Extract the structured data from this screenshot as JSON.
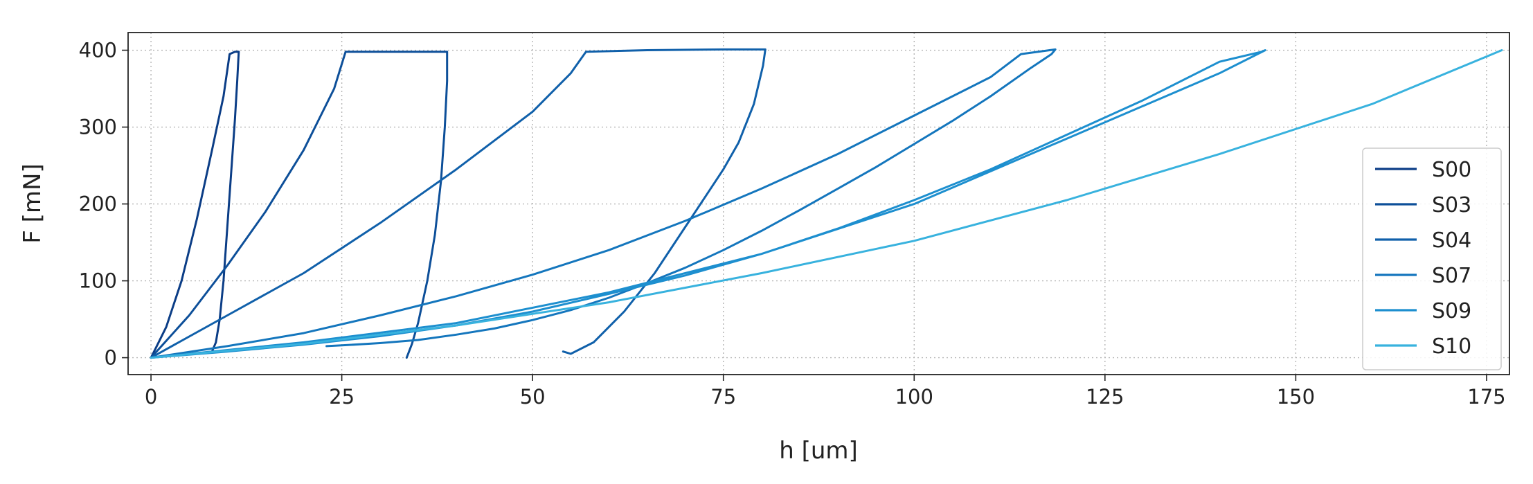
{
  "chart_data": {
    "type": "line",
    "title": "",
    "xlabel": "h [um]",
    "ylabel": "F [mN]",
    "xlim": [
      -3,
      178
    ],
    "ylim": [
      -22,
      423
    ],
    "xticks": [
      0,
      25,
      50,
      75,
      100,
      125,
      150,
      175
    ],
    "yticks": [
      0,
      100,
      200,
      300,
      400
    ],
    "grid": true,
    "legend_position": "lower-right",
    "series": [
      {
        "name": "S00",
        "color": "#0b3d86",
        "x": [
          0,
          2,
          4,
          6,
          8,
          9.5,
          10.3,
          11.0,
          11.5,
          11.3,
          11.0,
          10.5,
          10.0,
          9.5,
          9.0,
          8.5,
          8.0
        ],
        "y": [
          0,
          40,
          100,
          180,
          270,
          340,
          395,
          398,
          398,
          360,
          310,
          240,
          170,
          100,
          50,
          20,
          8
        ]
      },
      {
        "name": "S03",
        "color": "#0d4f99",
        "x": [
          0,
          5,
          10,
          15,
          20,
          24,
          25.5,
          28,
          32,
          36,
          38.8,
          38.8,
          38.5,
          38.0,
          37.2,
          36.2,
          35.0,
          34.2,
          33.5
        ],
        "y": [
          0,
          55,
          120,
          190,
          270,
          350,
          398,
          398,
          398,
          398,
          398,
          360,
          300,
          230,
          160,
          100,
          45,
          18,
          0
        ]
      },
      {
        "name": "S04",
        "color": "#1060aa",
        "x": [
          0,
          10,
          20,
          30,
          40,
          50,
          55,
          57,
          65,
          75,
          80.5,
          80.2,
          79,
          77,
          75,
          72,
          69,
          66,
          62,
          58,
          55,
          54
        ],
        "y": [
          0,
          55,
          110,
          175,
          245,
          320,
          370,
          398,
          400,
          401,
          401,
          380,
          330,
          280,
          245,
          200,
          155,
          110,
          60,
          20,
          5,
          8
        ]
      },
      {
        "name": "S07",
        "color": "#1476bd",
        "x": [
          0,
          10,
          20,
          30,
          40,
          50,
          60,
          70,
          80,
          90,
          100,
          110,
          114,
          118.5,
          118,
          115,
          110,
          105,
          100,
          95,
          90,
          85,
          80,
          75,
          70,
          65,
          60,
          55,
          50,
          45,
          40,
          35,
          30,
          25,
          23
        ],
        "y": [
          0,
          15,
          32,
          55,
          80,
          108,
          140,
          178,
          220,
          265,
          315,
          365,
          395,
          401,
          395,
          375,
          340,
          308,
          278,
          248,
          220,
          192,
          165,
          140,
          117,
          97,
          78,
          62,
          49,
          38,
          30,
          23,
          19,
          16,
          15
        ]
      },
      {
        "name": "S09",
        "color": "#1d8fcf",
        "x": [
          0,
          20,
          40,
          60,
          80,
          100,
          120,
          140,
          146,
          145.5,
          140,
          130,
          120,
          110,
          100,
          90,
          80,
          70,
          60,
          50,
          40,
          30,
          20,
          10,
          0
        ],
        "y": [
          0,
          20,
          45,
          85,
          135,
          200,
          285,
          370,
          400,
          398,
          385,
          335,
          290,
          245,
          205,
          168,
          135,
          107,
          83,
          60,
          42,
          28,
          17,
          8,
          0
        ]
      },
      {
        "name": "S10",
        "color": "#38b2de",
        "x": [
          0,
          20,
          40,
          60,
          80,
          100,
          120,
          140,
          160,
          177
        ],
        "y": [
          0,
          18,
          42,
          72,
          110,
          152,
          205,
          265,
          330,
          400
        ]
      }
    ]
  }
}
